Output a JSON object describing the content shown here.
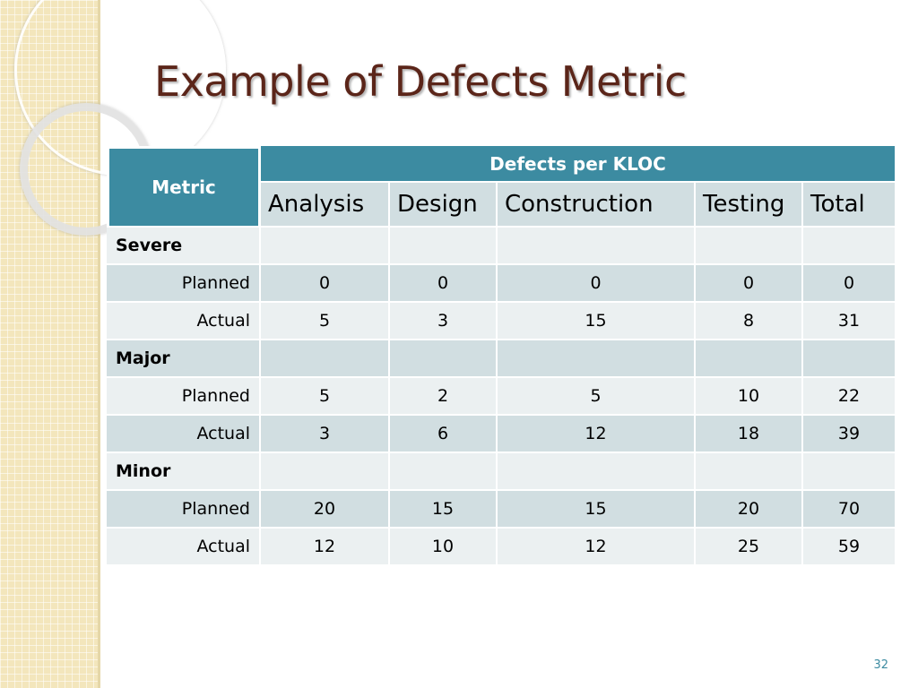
{
  "slide": {
    "title": "Example of Defects Metric",
    "page_number": "32"
  },
  "table": {
    "metric_header": "Metric",
    "group_header": "Defects per KLOC",
    "columns": [
      "Analysis",
      "Design",
      "Construction",
      "Testing",
      "Total"
    ],
    "categories": [
      {
        "name": "Severe",
        "rows": [
          {
            "label": "Planned",
            "values": [
              "0",
              "0",
              "0",
              "0",
              "0"
            ]
          },
          {
            "label": "Actual",
            "values": [
              "5",
              "3",
              "15",
              "8",
              "31"
            ]
          }
        ]
      },
      {
        "name": "Major",
        "rows": [
          {
            "label": "Planned",
            "values": [
              "5",
              "2",
              "5",
              "10",
              "22"
            ]
          },
          {
            "label": "Actual",
            "values": [
              "3",
              "6",
              "12",
              "18",
              "39"
            ]
          }
        ]
      },
      {
        "name": "Minor",
        "rows": [
          {
            "label": "Planned",
            "values": [
              "20",
              "15",
              "15",
              "20",
              "70"
            ]
          },
          {
            "label": "Actual",
            "values": [
              "12",
              "10",
              "12",
              "25",
              "59"
            ]
          }
        ]
      }
    ]
  },
  "colors": {
    "title": "#5b2519",
    "header_bg": "#3c8ba1",
    "band_dark": "#d1dee1",
    "band_light": "#ebf0f1",
    "sidebar": "#f3e6bc"
  }
}
